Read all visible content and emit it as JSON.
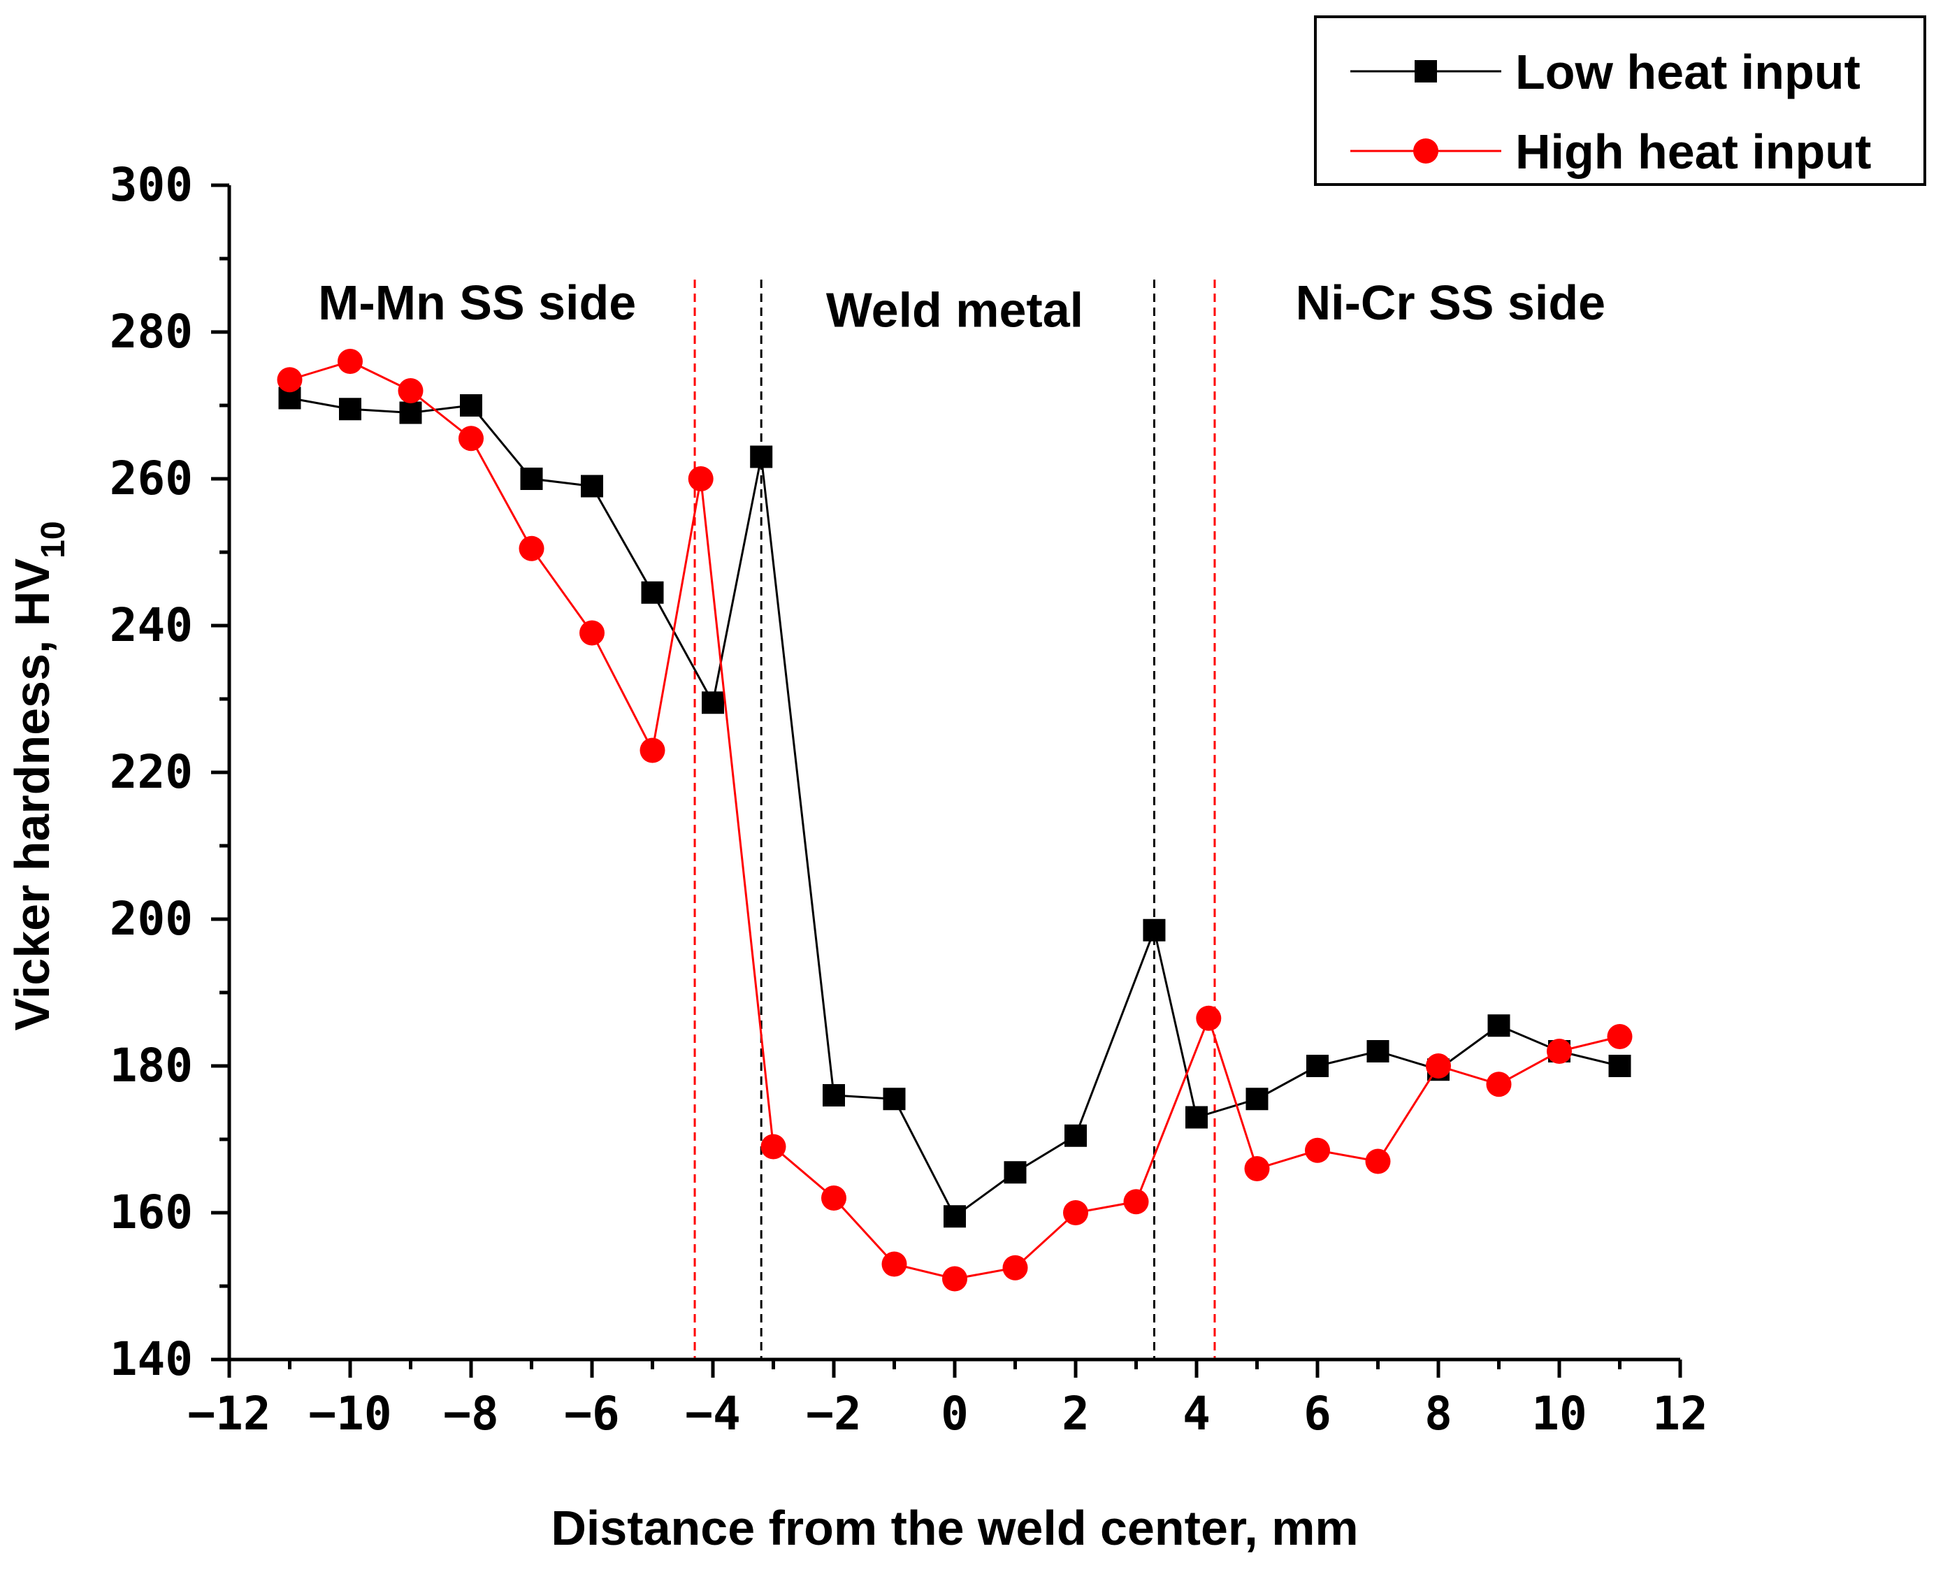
{
  "chart_data": {
    "type": "line",
    "xlabel": "Distance from the weld center, mm",
    "ylabel": "Vicker hardness, HV",
    "ylabel_subscript": "10",
    "xlim": [
      -12,
      12
    ],
    "ylim": [
      140,
      300
    ],
    "x_ticks": [
      "-12",
      "-10",
      "-8",
      "-6",
      "-4",
      "-2",
      "0",
      "2",
      "4",
      "6",
      "8",
      "10",
      "12"
    ],
    "y_ticks": [
      "140",
      "160",
      "180",
      "200",
      "220",
      "240",
      "260",
      "280",
      "300"
    ],
    "legend_position": "top-right",
    "grid": false,
    "series": [
      {
        "name": "Low heat input",
        "color": "#000000",
        "marker": "square",
        "x": [
          -11,
          -10,
          -9,
          -8,
          -7,
          -6,
          -5,
          -4,
          -3.2,
          -2,
          -1,
          0,
          1,
          2,
          3.3,
          4,
          5,
          6,
          7,
          8,
          9,
          10,
          11
        ],
        "y": [
          271,
          269.5,
          269,
          270,
          260,
          259,
          244.5,
          229.5,
          263,
          176,
          175.5,
          159.5,
          165.5,
          170.5,
          198.5,
          173,
          175.5,
          180,
          182,
          179.5,
          185.5,
          182,
          180
        ]
      },
      {
        "name": "High heat input",
        "color": "#ff0000",
        "marker": "circle",
        "x": [
          -11,
          -10,
          -9,
          -8,
          -7,
          -6,
          -5,
          -4.2,
          -3,
          -2,
          -1,
          0,
          1,
          2,
          3,
          4.2,
          5,
          6,
          7,
          8,
          9,
          10,
          11
        ],
        "y": [
          273.5,
          276,
          272,
          265.5,
          250.5,
          239,
          223,
          260,
          169,
          162,
          153,
          151,
          152.5,
          160,
          161.5,
          186.5,
          166,
          168.5,
          167,
          180,
          177.5,
          182,
          184
        ]
      }
    ],
    "vertical_lines": [
      {
        "x": -4.3,
        "color": "#ff0000"
      },
      {
        "x": -3.2,
        "color": "#000000"
      },
      {
        "x": 3.3,
        "color": "#000000"
      },
      {
        "x": 4.3,
        "color": "#ff0000"
      }
    ],
    "annotations": [
      {
        "text": "M-Mn SS side",
        "x": -7.9,
        "y": 284
      },
      {
        "text": "Weld metal",
        "x": 0.0,
        "y": 283
      },
      {
        "text": "Ni-Cr SS side",
        "x": 8.2,
        "y": 284
      }
    ]
  }
}
